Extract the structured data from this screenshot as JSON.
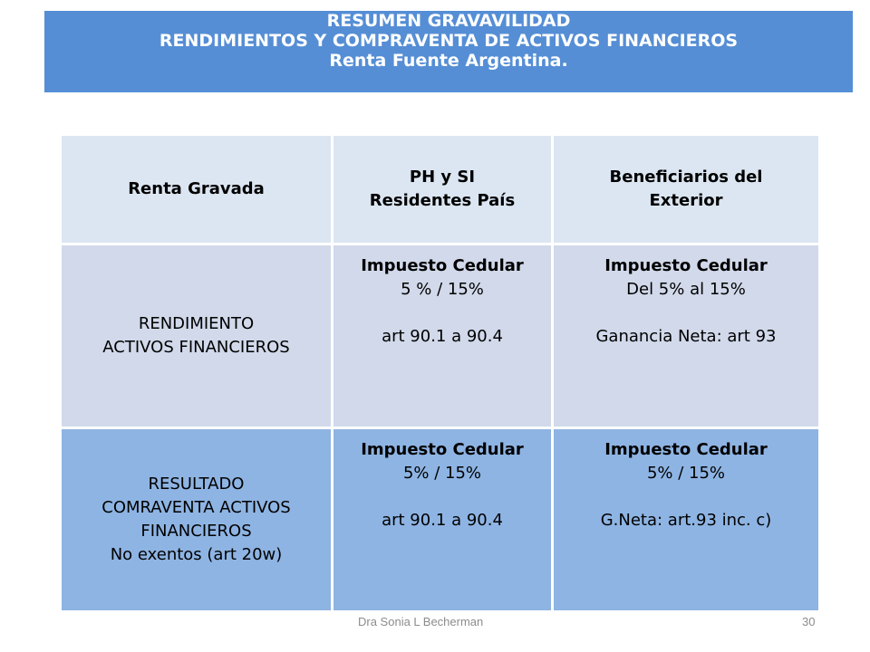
{
  "title": {
    "line1": "RESUMEN GRAVAVILIDAD",
    "line2": "RENDIMIENTOS  Y COMPRAVENTA  DE  ACTIVOS FINANCIEROS",
    "line3": "Renta Fuente Argentina."
  },
  "table": {
    "headers": {
      "col1": "Renta Gravada",
      "col2_line1": "PH y SI",
      "col2_line2": "Residentes País",
      "col3_line1": "Beneficiarios del",
      "col3_line2": "Exterior"
    },
    "row1": {
      "label_line1": "RENDIMIENTO",
      "label_line2": "ACTIVOS FINANCIEROS",
      "res_title": "Impuesto Cedular",
      "res_rate": "5 % / 15%",
      "res_ref": "art 90.1 a 90.4",
      "ext_title": "Impuesto Cedular",
      "ext_rate": "Del 5% al 15%",
      "ext_ref": "Ganancia Neta: art 93"
    },
    "row2": {
      "label_line1": "RESULTADO",
      "label_line2": "COMRAVENTA ACTIVOS",
      "label_line3": "FINANCIEROS",
      "label_line4": "No exentos (art 20w)",
      "res_title": "Impuesto Cedular",
      "res_rate": "5% / 15%",
      "res_ref": "art 90.1 a 90.4",
      "ext_title": "Impuesto Cedular",
      "ext_rate": "5% / 15%",
      "ext_ref": "G.Neta: art.93 inc. c)"
    }
  },
  "footer": {
    "author": "Dra Sonia L Becherman",
    "page_number": "30"
  },
  "colors": {
    "title_bg": "#558ed5",
    "header_bg": "#dce6f2",
    "row1_bg": "#d1d9ea",
    "row2_bg": "#8eb4e3"
  }
}
